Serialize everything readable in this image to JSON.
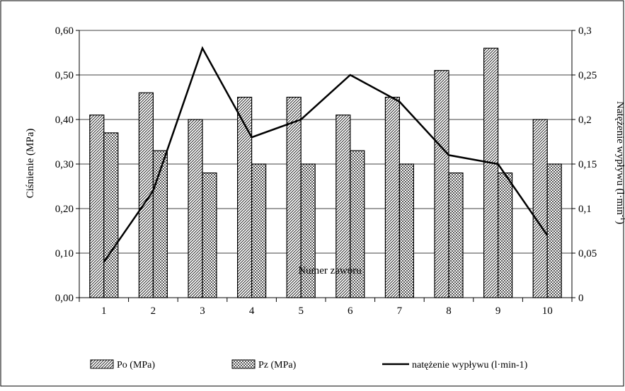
{
  "chart_data": {
    "type": "bar",
    "xlabel": "Numer zaworu",
    "ylabel": "Ciśnienie (MPa)",
    "y2label": "Natężenie wypływu (l·min",
    "y2label_sup": "-1",
    "y2label_end": ")",
    "categories": [
      "1",
      "2",
      "3",
      "4",
      "5",
      "6",
      "7",
      "8",
      "9",
      "10"
    ],
    "ylim": [
      0,
      0.6
    ],
    "y2lim": [
      0,
      0.3
    ],
    "yticks": [
      "0,00",
      "0,10",
      "0,20",
      "0,30",
      "0,40",
      "0,50",
      "0,60"
    ],
    "y2ticks": [
      "0",
      "0,05",
      "0,1",
      "0,15",
      "0,2",
      "0,25",
      "0,3"
    ],
    "grid": true,
    "legend_position": "bottom",
    "series": [
      {
        "name": "Po (MPa)",
        "kind": "bar",
        "axis": "left",
        "pattern": "hatch",
        "values": [
          0.41,
          0.46,
          0.4,
          0.45,
          0.45,
          0.41,
          0.45,
          0.51,
          0.56,
          0.4
        ]
      },
      {
        "name": "Pz (MPa)",
        "kind": "bar",
        "axis": "left",
        "pattern": "checker",
        "values": [
          0.37,
          0.33,
          0.28,
          0.3,
          0.3,
          0.33,
          0.3,
          0.28,
          0.28,
          0.3
        ]
      },
      {
        "name": "natężenie wypływu (l·min-1)",
        "kind": "line",
        "axis": "right",
        "values": [
          0.04,
          0.12,
          0.28,
          0.18,
          0.2,
          0.25,
          0.22,
          0.16,
          0.15,
          0.07
        ]
      }
    ]
  }
}
